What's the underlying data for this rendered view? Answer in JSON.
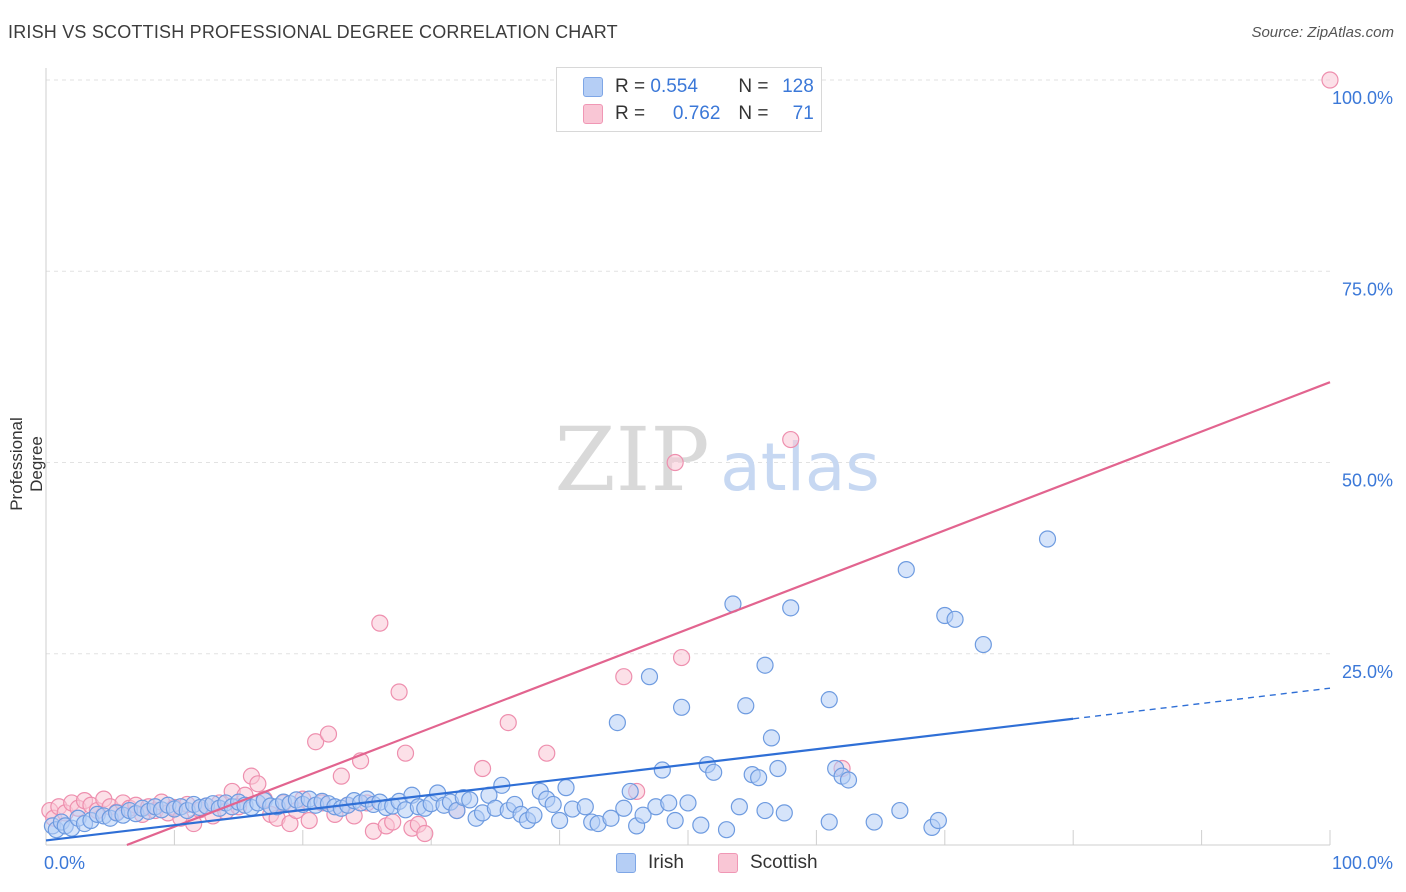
{
  "title": "IRISH VS SCOTTISH PROFESSIONAL DEGREE CORRELATION CHART",
  "source": "Source: ZipAtlas.com",
  "watermark": {
    "zip": "ZIP",
    "atlas": "atlas"
  },
  "legend": {
    "irish": {
      "r_label": "R =",
      "r_value": "0.554",
      "n_label": "N =",
      "n_value": "128"
    },
    "scottish": {
      "r_label": "R =",
      "r_value": "0.762",
      "n_label": "N =",
      "n_value": "71"
    }
  },
  "bottom_legend": {
    "irish": "Irish",
    "scottish": "Scottish"
  },
  "colors": {
    "irish_fill": "#b5cef5",
    "irish_stroke": "#6e9be0",
    "irish_line": "#2f6fd6",
    "scottish_fill": "#f9c6d5",
    "scottish_stroke": "#ee8fae",
    "scottish_line": "#e2648f",
    "grid": "#e2e2e2",
    "tick_label": "#3b78d8"
  },
  "chart_data": {
    "type": "scatter",
    "title": "IRISH VS SCOTTISH PROFESSIONAL DEGREE CORRELATION CHART",
    "xlabel": "",
    "ylabel": "Professional Degree",
    "xlim": [
      0,
      100
    ],
    "ylim": [
      0,
      100
    ],
    "x_tick_labels": [
      "0.0%",
      "100.0%"
    ],
    "y_tick_labels": [
      "100.0%",
      "75.0%",
      "50.0%",
      "25.0%"
    ],
    "y_ticks": [
      100,
      75,
      50,
      25
    ],
    "series": [
      {
        "name": "Irish",
        "r": 0.554,
        "n": 128,
        "trend": {
          "x0": 0,
          "y0": 0.6,
          "x1": 80,
          "y1": 16.5,
          "dash_to_x": 100,
          "dash_to_y": 20.5
        },
        "points": [
          [
            0.5,
            2.5
          ],
          [
            0.8,
            2.0
          ],
          [
            1.2,
            3.0
          ],
          [
            1.5,
            2.5
          ],
          [
            2.0,
            2.2
          ],
          [
            2.5,
            3.5
          ],
          [
            3.0,
            2.8
          ],
          [
            3.5,
            3.2
          ],
          [
            4.0,
            4.0
          ],
          [
            4.5,
            3.8
          ],
          [
            5.0,
            3.5
          ],
          [
            5.5,
            4.2
          ],
          [
            6.0,
            3.9
          ],
          [
            6.5,
            4.5
          ],
          [
            7.0,
            4.1
          ],
          [
            7.5,
            4.8
          ],
          [
            8.0,
            4.4
          ],
          [
            8.5,
            5.0
          ],
          [
            9.0,
            4.6
          ],
          [
            9.5,
            5.2
          ],
          [
            10.0,
            4.7
          ],
          [
            10.5,
            5.0
          ],
          [
            11.0,
            4.5
          ],
          [
            11.5,
            5.3
          ],
          [
            12.0,
            4.9
          ],
          [
            12.5,
            5.1
          ],
          [
            13.0,
            5.4
          ],
          [
            13.5,
            4.8
          ],
          [
            14.0,
            5.5
          ],
          [
            14.5,
            5.0
          ],
          [
            15.0,
            5.6
          ],
          [
            15.5,
            5.2
          ],
          [
            16.0,
            4.9
          ],
          [
            16.5,
            5.5
          ],
          [
            17.0,
            5.8
          ],
          [
            17.5,
            5.1
          ],
          [
            18.0,
            5.0
          ],
          [
            18.5,
            5.6
          ],
          [
            19.0,
            5.4
          ],
          [
            19.5,
            5.9
          ],
          [
            20.0,
            5.3
          ],
          [
            20.5,
            6.0
          ],
          [
            21.0,
            5.2
          ],
          [
            21.5,
            5.7
          ],
          [
            22.0,
            5.4
          ],
          [
            22.5,
            5.0
          ],
          [
            23.0,
            4.8
          ],
          [
            23.5,
            5.2
          ],
          [
            24.0,
            5.8
          ],
          [
            24.5,
            5.5
          ],
          [
            25.0,
            6.0
          ],
          [
            25.5,
            5.3
          ],
          [
            26.0,
            5.6
          ],
          [
            26.5,
            4.9
          ],
          [
            27.0,
            5.1
          ],
          [
            27.5,
            5.7
          ],
          [
            28.0,
            4.6
          ],
          [
            28.5,
            6.5
          ],
          [
            29.0,
            5.0
          ],
          [
            29.5,
            4.8
          ],
          [
            30.0,
            5.4
          ],
          [
            30.5,
            6.8
          ],
          [
            31.0,
            5.2
          ],
          [
            31.5,
            5.6
          ],
          [
            32.0,
            4.5
          ],
          [
            32.5,
            6.2
          ],
          [
            33.0,
            5.9
          ],
          [
            33.5,
            3.5
          ],
          [
            34.0,
            4.2
          ],
          [
            34.5,
            6.5
          ],
          [
            35.0,
            4.8
          ],
          [
            35.5,
            7.8
          ],
          [
            36.0,
            4.5
          ],
          [
            36.5,
            5.3
          ],
          [
            37.0,
            4.0
          ],
          [
            37.5,
            3.2
          ],
          [
            38.0,
            3.9
          ],
          [
            38.5,
            7.0
          ],
          [
            39.0,
            6.0
          ],
          [
            39.5,
            5.3
          ],
          [
            40.0,
            3.2
          ],
          [
            40.5,
            7.5
          ],
          [
            41.0,
            4.7
          ],
          [
            42.0,
            5.0
          ],
          [
            42.5,
            3.0
          ],
          [
            43.0,
            2.8
          ],
          [
            44.0,
            3.5
          ],
          [
            44.5,
            16.0
          ],
          [
            45.0,
            4.8
          ],
          [
            45.5,
            7.0
          ],
          [
            46.0,
            2.5
          ],
          [
            46.5,
            3.9
          ],
          [
            47.0,
            22.0
          ],
          [
            47.5,
            5.0
          ],
          [
            48.0,
            9.8
          ],
          [
            48.5,
            5.5
          ],
          [
            49.0,
            3.2
          ],
          [
            49.5,
            18.0
          ],
          [
            50.0,
            5.5
          ],
          [
            51.0,
            2.6
          ],
          [
            51.5,
            10.5
          ],
          [
            52.0,
            9.5
          ],
          [
            53.0,
            2.0
          ],
          [
            53.5,
            31.5
          ],
          [
            54.0,
            5.0
          ],
          [
            54.5,
            18.2
          ],
          [
            55.0,
            9.2
          ],
          [
            55.5,
            8.8
          ],
          [
            56.0,
            23.5
          ],
          [
            56.5,
            14.0
          ],
          [
            57.0,
            10.0
          ],
          [
            57.5,
            4.2
          ],
          [
            58.0,
            31.0
          ],
          [
            61.0,
            19.0
          ],
          [
            61.5,
            10.0
          ],
          [
            62.0,
            9.0
          ],
          [
            61.0,
            3.0
          ],
          [
            64.5,
            3.0
          ],
          [
            66.5,
            4.5
          ],
          [
            67.0,
            36.0
          ],
          [
            69.0,
            2.3
          ],
          [
            70.0,
            30.0
          ],
          [
            70.8,
            29.5
          ],
          [
            73.0,
            26.2
          ],
          [
            78.0,
            40.0
          ],
          [
            56.0,
            4.5
          ],
          [
            62.5,
            8.5
          ],
          [
            69.5,
            3.2
          ]
        ]
      },
      {
        "name": "Scottish",
        "r": 0.762,
        "n": 71,
        "trend": {
          "x0": 6.3,
          "y0": 0,
          "x1": 100,
          "y1": 60.5
        },
        "points": [
          [
            0.3,
            4.5
          ],
          [
            0.6,
            3.5
          ],
          [
            1.0,
            5.0
          ],
          [
            1.5,
            4.2
          ],
          [
            2.0,
            5.5
          ],
          [
            2.5,
            4.8
          ],
          [
            3.0,
            5.8
          ],
          [
            3.5,
            5.2
          ],
          [
            4.0,
            4.5
          ],
          [
            4.5,
            6.0
          ],
          [
            5.0,
            5.0
          ],
          [
            5.5,
            4.3
          ],
          [
            6.0,
            5.5
          ],
          [
            6.5,
            4.8
          ],
          [
            7.0,
            5.2
          ],
          [
            7.5,
            4.0
          ],
          [
            8.0,
            5.0
          ],
          [
            8.5,
            4.5
          ],
          [
            9.0,
            5.6
          ],
          [
            9.5,
            4.2
          ],
          [
            10.0,
            4.9
          ],
          [
            10.5,
            3.5
          ],
          [
            11.0,
            5.3
          ],
          [
            11.5,
            2.8
          ],
          [
            12.0,
            4.6
          ],
          [
            12.5,
            5.1
          ],
          [
            13.0,
            3.8
          ],
          [
            13.5,
            5.5
          ],
          [
            14.0,
            4.4
          ],
          [
            14.5,
            7.0
          ],
          [
            15.0,
            5.0
          ],
          [
            15.5,
            6.5
          ],
          [
            16.0,
            9.0
          ],
          [
            16.5,
            8.0
          ],
          [
            17.0,
            6.0
          ],
          [
            17.5,
            4.0
          ],
          [
            18.0,
            3.5
          ],
          [
            18.5,
            5.5
          ],
          [
            19.0,
            2.8
          ],
          [
            19.5,
            4.5
          ],
          [
            20.0,
            6.0
          ],
          [
            20.5,
            3.2
          ],
          [
            21.0,
            13.5
          ],
          [
            21.5,
            5.5
          ],
          [
            22.0,
            14.5
          ],
          [
            22.5,
            4.0
          ],
          [
            23.0,
            9.0
          ],
          [
            23.5,
            5.2
          ],
          [
            24.0,
            3.8
          ],
          [
            24.5,
            11.0
          ],
          [
            25.0,
            5.5
          ],
          [
            25.5,
            1.8
          ],
          [
            26.0,
            29.0
          ],
          [
            26.5,
            2.5
          ],
          [
            27.0,
            3.0
          ],
          [
            27.5,
            20.0
          ],
          [
            28.0,
            12.0
          ],
          [
            28.5,
            2.2
          ],
          [
            29.0,
            2.7
          ],
          [
            29.5,
            1.5
          ],
          [
            32.0,
            4.5
          ],
          [
            34.0,
            10.0
          ],
          [
            36.0,
            16.0
          ],
          [
            39.0,
            12.0
          ],
          [
            45.0,
            22.0
          ],
          [
            46.0,
            7.0
          ],
          [
            49.0,
            50.0
          ],
          [
            49.5,
            24.5
          ],
          [
            58.0,
            53.0
          ],
          [
            62.0,
            10.0
          ],
          [
            100.0,
            100.0
          ]
        ]
      }
    ]
  }
}
